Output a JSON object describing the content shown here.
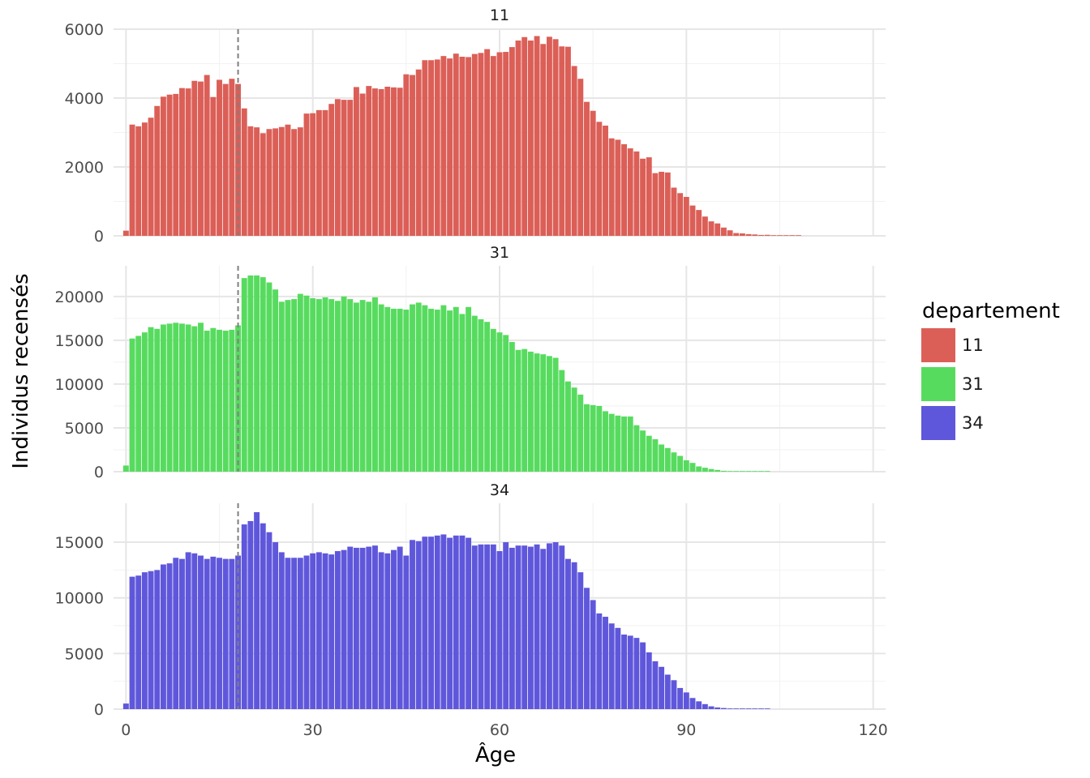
{
  "chart_data": {
    "type": "bar",
    "xlabel": "Âge",
    "ylabel": "Individus recensés",
    "xlim": [
      -2,
      122
    ],
    "x_ticks": [
      "0",
      "30",
      "60",
      "90",
      "120"
    ],
    "x_tick_values": [
      0,
      30,
      60,
      90,
      120
    ],
    "reference_line": {
      "x": 18,
      "style": "dashed",
      "color": "#7f7f7f"
    },
    "grid": true,
    "legend": {
      "title": "departement",
      "position": "right",
      "entries": [
        {
          "label": "11",
          "color": "#db5f57"
        },
        {
          "label": "31",
          "color": "#57db5f"
        },
        {
          "label": "34",
          "color": "#5f57db"
        }
      ]
    },
    "facets": [
      {
        "label": "11",
        "color": "#db5f57",
        "ylim": [
          0,
          6000
        ],
        "y_ticks": [
          "0",
          "2000",
          "4000",
          "6000"
        ],
        "y_tick_values": [
          0,
          2000,
          4000,
          6000
        ],
        "x": [
          0,
          1,
          2,
          3,
          4,
          5,
          6,
          7,
          8,
          9,
          10,
          11,
          12,
          13,
          14,
          15,
          16,
          17,
          18,
          19,
          20,
          21,
          22,
          23,
          24,
          25,
          26,
          27,
          28,
          29,
          30,
          31,
          32,
          33,
          34,
          35,
          36,
          37,
          38,
          39,
          40,
          41,
          42,
          43,
          44,
          45,
          46,
          47,
          48,
          49,
          50,
          51,
          52,
          53,
          54,
          55,
          56,
          57,
          58,
          59,
          60,
          61,
          62,
          63,
          64,
          65,
          66,
          67,
          68,
          69,
          70,
          71,
          72,
          73,
          74,
          75,
          76,
          77,
          78,
          79,
          80,
          81,
          82,
          83,
          84,
          85,
          86,
          87,
          88,
          89,
          90,
          91,
          92,
          93,
          94,
          95,
          96,
          97,
          98,
          99,
          100,
          101,
          102,
          103,
          104,
          105,
          106,
          107,
          108
        ],
        "values": [
          150,
          3230,
          3180,
          3290,
          3430,
          3770,
          4040,
          4100,
          4120,
          4290,
          4280,
          4500,
          4480,
          4670,
          4030,
          4530,
          4410,
          4560,
          4410,
          3700,
          3180,
          3150,
          2980,
          3100,
          3120,
          3160,
          3230,
          3100,
          3150,
          3550,
          3560,
          3650,
          3650,
          3830,
          3970,
          3950,
          3950,
          4320,
          4130,
          4350,
          4280,
          4260,
          4330,
          4310,
          4300,
          4690,
          4670,
          4830,
          5100,
          5100,
          5120,
          5220,
          5150,
          5290,
          5200,
          5190,
          5280,
          5310,
          5420,
          5220,
          5330,
          5340,
          5480,
          5670,
          5770,
          5670,
          5800,
          5570,
          5780,
          5710,
          5500,
          5490,
          4930,
          4560,
          3890,
          3630,
          3310,
          3200,
          2830,
          2790,
          2660,
          2540,
          2450,
          2240,
          2280,
          1820,
          1860,
          1840,
          1400,
          1240,
          1130,
          880,
          750,
          560,
          420,
          360,
          240,
          160,
          80,
          70,
          50,
          40,
          25,
          30,
          10,
          5,
          3,
          2,
          1
        ]
      },
      {
        "label": "31",
        "color": "#57db5f",
        "ylim": [
          0,
          23500
        ],
        "y_ticks": [
          "0",
          "5000",
          "10000",
          "15000",
          "20000"
        ],
        "y_tick_values": [
          0,
          5000,
          10000,
          15000,
          20000
        ],
        "x": [
          0,
          1,
          2,
          3,
          4,
          5,
          6,
          7,
          8,
          9,
          10,
          11,
          12,
          13,
          14,
          15,
          16,
          17,
          18,
          19,
          20,
          21,
          22,
          23,
          24,
          25,
          26,
          27,
          28,
          29,
          30,
          31,
          32,
          33,
          34,
          35,
          36,
          37,
          38,
          39,
          40,
          41,
          42,
          43,
          44,
          45,
          46,
          47,
          48,
          49,
          50,
          51,
          52,
          53,
          54,
          55,
          56,
          57,
          58,
          59,
          60,
          61,
          62,
          63,
          64,
          65,
          66,
          67,
          68,
          69,
          70,
          71,
          72,
          73,
          74,
          75,
          76,
          77,
          78,
          79,
          80,
          81,
          82,
          83,
          84,
          85,
          86,
          87,
          88,
          89,
          90,
          91,
          92,
          93,
          94,
          95,
          96,
          97,
          98,
          99,
          100,
          101,
          102,
          103,
          104,
          105,
          106,
          107,
          108
        ],
        "values": [
          700,
          15200,
          15500,
          15900,
          16500,
          16300,
          16800,
          16900,
          17000,
          16900,
          16800,
          16600,
          17000,
          16100,
          16400,
          16200,
          16100,
          16200,
          16700,
          22100,
          22400,
          22400,
          22200,
          21600,
          20800,
          19400,
          19600,
          19700,
          20300,
          20100,
          19800,
          19700,
          19900,
          19700,
          19500,
          20000,
          19700,
          19300,
          19600,
          19400,
          19900,
          19100,
          18800,
          18600,
          18600,
          18500,
          19100,
          19300,
          19000,
          18600,
          18500,
          19000,
          18400,
          18800,
          18000,
          18800,
          17800,
          17400,
          17100,
          16300,
          15900,
          15600,
          14800,
          13900,
          14000,
          13700,
          13500,
          13400,
          13200,
          13000,
          11600,
          10300,
          9600,
          8800,
          7700,
          7600,
          7500,
          6900,
          6600,
          6400,
          6300,
          6300,
          5300,
          4700,
          4100,
          3700,
          3100,
          2700,
          2200,
          1800,
          1300,
          1000,
          600,
          450,
          300,
          200,
          100,
          60,
          30,
          20,
          10,
          5,
          2,
          1,
          0,
          0,
          0,
          0,
          0
        ]
      },
      {
        "label": "34",
        "color": "#5f57db",
        "ylim": [
          0,
          18500
        ],
        "y_ticks": [
          "0",
          "5000",
          "10000",
          "15000"
        ],
        "y_tick_values": [
          0,
          5000,
          10000,
          15000
        ],
        "x": [
          0,
          1,
          2,
          3,
          4,
          5,
          6,
          7,
          8,
          9,
          10,
          11,
          12,
          13,
          14,
          15,
          16,
          17,
          18,
          19,
          20,
          21,
          22,
          23,
          24,
          25,
          26,
          27,
          28,
          29,
          30,
          31,
          32,
          33,
          34,
          35,
          36,
          37,
          38,
          39,
          40,
          41,
          42,
          43,
          44,
          45,
          46,
          47,
          48,
          49,
          50,
          51,
          52,
          53,
          54,
          55,
          56,
          57,
          58,
          59,
          60,
          61,
          62,
          63,
          64,
          65,
          66,
          67,
          68,
          69,
          70,
          71,
          72,
          73,
          74,
          75,
          76,
          77,
          78,
          79,
          80,
          81,
          82,
          83,
          84,
          85,
          86,
          87,
          88,
          89,
          90,
          91,
          92,
          93,
          94,
          95,
          96,
          97,
          98,
          99,
          100,
          101,
          102,
          103,
          104,
          105,
          106,
          107,
          108
        ],
        "values": [
          500,
          11900,
          12000,
          12300,
          12400,
          12500,
          13000,
          13100,
          13600,
          13500,
          14100,
          14000,
          13800,
          13500,
          13700,
          13600,
          13500,
          13500,
          13800,
          16600,
          16900,
          17700,
          16700,
          15900,
          15000,
          14100,
          13600,
          13600,
          13600,
          13800,
          14000,
          14100,
          14000,
          13900,
          14200,
          14300,
          14600,
          14500,
          14500,
          14600,
          14700,
          14100,
          14000,
          14300,
          14600,
          13800,
          15200,
          15100,
          15500,
          15500,
          15600,
          15700,
          15400,
          15600,
          15600,
          15400,
          14700,
          14800,
          14800,
          14800,
          14200,
          15000,
          14500,
          14700,
          14700,
          14600,
          14800,
          14400,
          14900,
          15000,
          14700,
          13500,
          13200,
          12300,
          10900,
          9800,
          8600,
          8300,
          7700,
          7300,
          6700,
          6600,
          6400,
          6000,
          5100,
          4300,
          3800,
          3100,
          2600,
          1900,
          1500,
          1000,
          700,
          450,
          250,
          150,
          100,
          60,
          30,
          20,
          10,
          5,
          2,
          1,
          0,
          0,
          0,
          0,
          0
        ]
      }
    ]
  }
}
